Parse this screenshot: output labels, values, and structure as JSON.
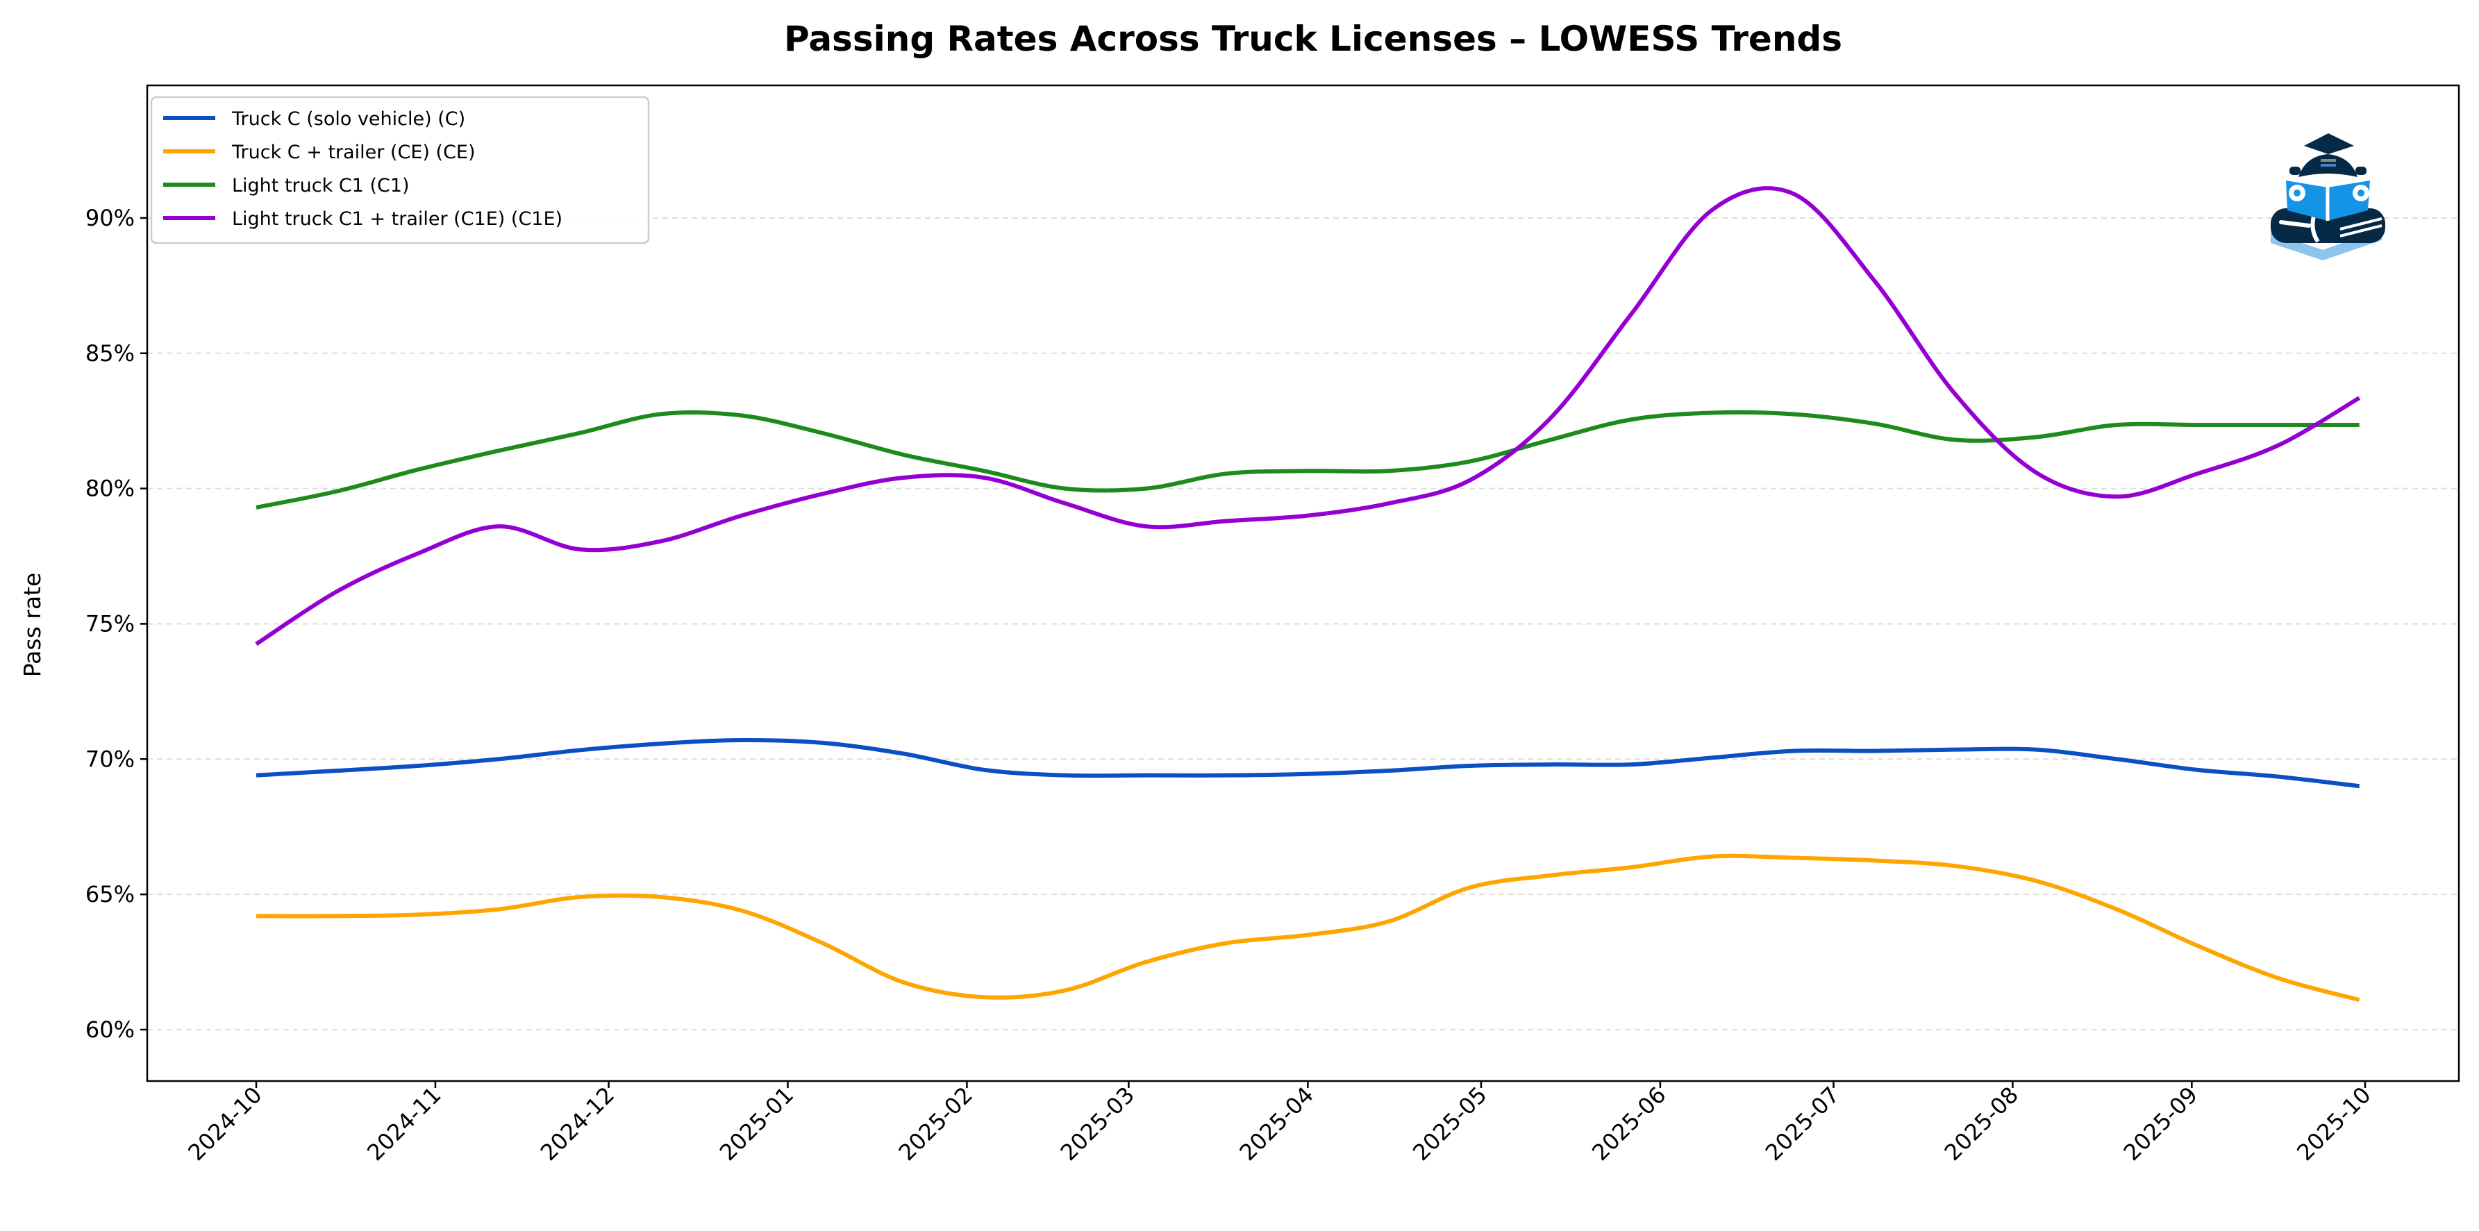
{
  "chart_data": {
    "type": "line",
    "title": "Passing Rates Across Truck Licenses – LOWESS Trends",
    "xlabel": "",
    "ylabel": "Pass rate",
    "x_ticks": [
      "2024-10",
      "2024-11",
      "2024-12",
      "2025-01",
      "2025-02",
      "2025-03",
      "2025-04",
      "2025-05",
      "2025-06",
      "2025-07",
      "2025-08",
      "2025-09",
      "2025-10"
    ],
    "y_ticks": [
      "60%",
      "65%",
      "70%",
      "75%",
      "80%",
      "85%",
      "90%"
    ],
    "y_tick_values": [
      60,
      65,
      70,
      75,
      80,
      85,
      90
    ],
    "ylim": [
      58.1,
      94.9
    ],
    "xlim": [
      "2024-09-12",
      "2025-10-17"
    ],
    "grid": "horizontal dashed",
    "legend_position": "top-left",
    "x": [
      "2024-10-01",
      "2024-10-15",
      "2024-10-29",
      "2024-11-12",
      "2024-11-26",
      "2024-12-10",
      "2024-12-24",
      "2025-01-07",
      "2025-01-21",
      "2025-02-04",
      "2025-02-18",
      "2025-03-04",
      "2025-03-18",
      "2025-04-01",
      "2025-04-15",
      "2025-04-29",
      "2025-05-13",
      "2025-05-27",
      "2025-06-10",
      "2025-06-24",
      "2025-07-08",
      "2025-07-22",
      "2025-08-05",
      "2025-08-19",
      "2025-09-02",
      "2025-09-16",
      "2025-09-30"
    ],
    "series": [
      {
        "name": "Truck C (solo vehicle) (C)",
        "color": "#0a4fc4",
        "values": [
          69.4,
          69.57,
          69.75,
          70.0,
          70.33,
          70.57,
          70.7,
          70.6,
          70.2,
          69.6,
          69.4,
          69.4,
          69.4,
          69.45,
          69.57,
          69.75,
          69.8,
          69.8,
          70.05,
          70.3,
          70.3,
          70.35,
          70.35,
          70.0,
          69.6,
          69.35,
          69.0
        ]
      },
      {
        "name": "Truck C + trailer (CE) (CE)",
        "color": "#ffa500",
        "values": [
          64.2,
          64.2,
          64.25,
          64.45,
          64.9,
          64.9,
          64.4,
          63.2,
          61.75,
          61.2,
          61.45,
          62.5,
          63.2,
          63.5,
          64.0,
          65.25,
          65.7,
          66.0,
          66.4,
          66.35,
          66.25,
          66.05,
          65.5,
          64.45,
          63.1,
          61.9,
          61.1
        ]
      },
      {
        "name": "Light truck C1 (C1)",
        "color": "#1e8a1e",
        "values": [
          79.3,
          79.9,
          80.7,
          81.4,
          82.05,
          82.75,
          82.7,
          82.05,
          81.25,
          80.65,
          80.0,
          80.0,
          80.55,
          80.65,
          80.65,
          81.0,
          81.8,
          82.55,
          82.8,
          82.75,
          82.4,
          81.8,
          81.9,
          82.35,
          82.35,
          82.35,
          82.35
        ]
      },
      {
        "name": "Light truck C1 + trailer (C1E) (C1E)",
        "color": "#9400d3",
        "values": [
          74.25,
          76.2,
          77.6,
          78.6,
          77.75,
          78.05,
          79.0,
          79.8,
          80.4,
          80.4,
          79.45,
          78.6,
          78.8,
          79.0,
          79.45,
          80.3,
          82.6,
          86.45,
          90.3,
          90.9,
          87.7,
          83.5,
          80.6,
          79.7,
          80.55,
          81.6,
          83.35
        ]
      }
    ]
  },
  "logo": {
    "icon": "car-book-graduation-cap-logo"
  }
}
